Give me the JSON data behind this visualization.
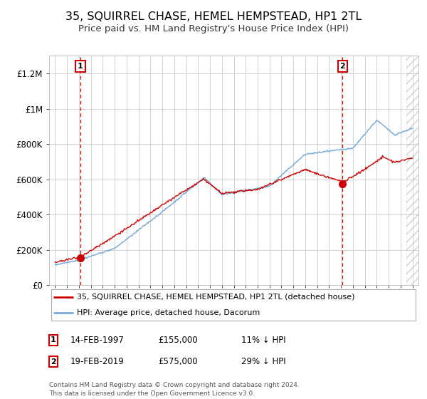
{
  "title": "35, SQUIRREL CHASE, HEMEL HEMPSTEAD, HP1 2TL",
  "subtitle": "Price paid vs. HM Land Registry's House Price Index (HPI)",
  "title_fontsize": 11.5,
  "subtitle_fontsize": 9.5,
  "bg_color": "#ffffff",
  "legend_entries": [
    "35, SQUIRREL CHASE, HEMEL HEMPSTEAD, HP1 2TL (detached house)",
    "HPI: Average price, detached house, Dacorum"
  ],
  "legend_colors": [
    "#cc0000",
    "#7aaddb"
  ],
  "sale1_year": 1997.12,
  "sale1_price": 155000,
  "sale2_year": 2019.12,
  "sale2_price": 575000,
  "sale1_label": "1",
  "sale2_label": "2",
  "hatch_start": 2024.5,
  "table_rows": [
    {
      "num": "1",
      "date": "14-FEB-1997",
      "price": "£155,000",
      "hpi": "11% ↓ HPI"
    },
    {
      "num": "2",
      "date": "19-FEB-2019",
      "price": "£575,000",
      "hpi": "29% ↓ HPI"
    }
  ],
  "footer": "Contains HM Land Registry data © Crown copyright and database right 2024.\nThis data is licensed under the Open Government Licence v3.0.",
  "ylim": [
    0,
    1300000
  ],
  "xlim": [
    1994.5,
    2025.5
  ],
  "yticks": [
    0,
    200000,
    400000,
    600000,
    800000,
    1000000,
    1200000
  ],
  "ytick_labels": [
    "£0",
    "£200K",
    "£400K",
    "£600K",
    "£800K",
    "£1M",
    "£1.2M"
  ]
}
